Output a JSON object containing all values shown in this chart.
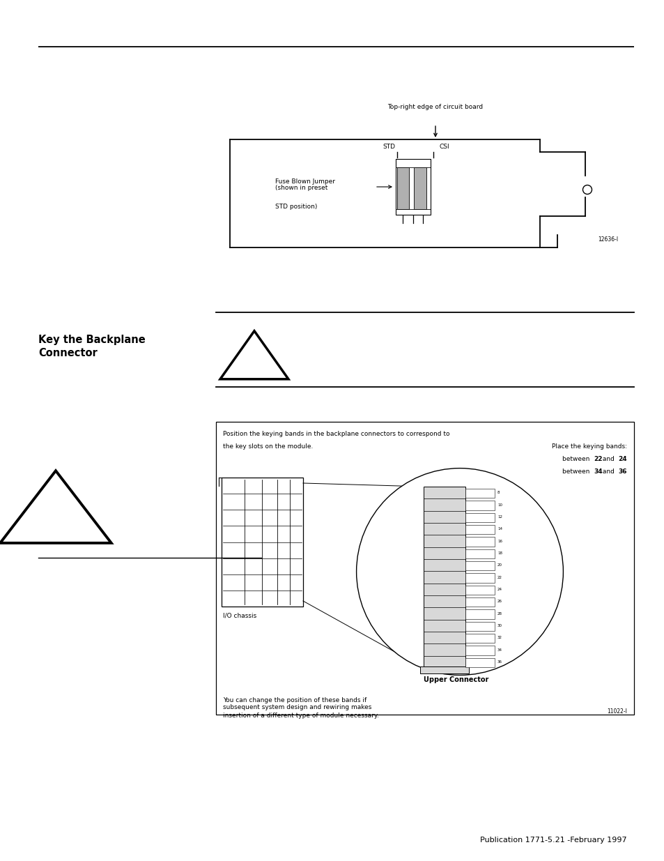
{
  "bg_color": "#ffffff",
  "page_width": 9.54,
  "page_height": 12.35,
  "dpi": 100,
  "footer_text": "Publication 1771-5.21 -February 1997",
  "footer_fontsize": 8,
  "section_title": "Key the Backplane\nConnector",
  "top_label": "Top-right edge of circuit board",
  "std_label": "STD",
  "csi_label": "CSI",
  "fuse_label1": "Fuse Blown Jumper",
  "fuse_label2": "(shown in preset",
  "fuse_label3": "STD position)",
  "diagram_ref1": "12636-I",
  "box_text1": "Position the keying bands in the backplane connectors to correspond to",
  "box_text2": "the key slots on the module.",
  "box_text3": "Place the keying bands:",
  "box_text4a": "between ",
  "box_text4b": "22",
  "box_text4c": " and ",
  "box_text4d": "24",
  "box_text5a": "between ",
  "box_text5b": "34",
  "box_text5c": " and ",
  "box_text5d": "36",
  "box_text6": "You can change the position of these bands if",
  "box_text7": "subsequent system design and rewiring makes",
  "box_text8": "insertion of a different type of module necessary.",
  "diagram_ref2": "11022-I",
  "io_chassis_label": "I/O chassis",
  "upper_connector_label": "Upper Connector",
  "connector_numbers": [
    "8",
    "10",
    "12",
    "14",
    "16",
    "18",
    "20",
    "22",
    "24",
    "26",
    "28",
    "30",
    "32",
    "34",
    "36"
  ]
}
